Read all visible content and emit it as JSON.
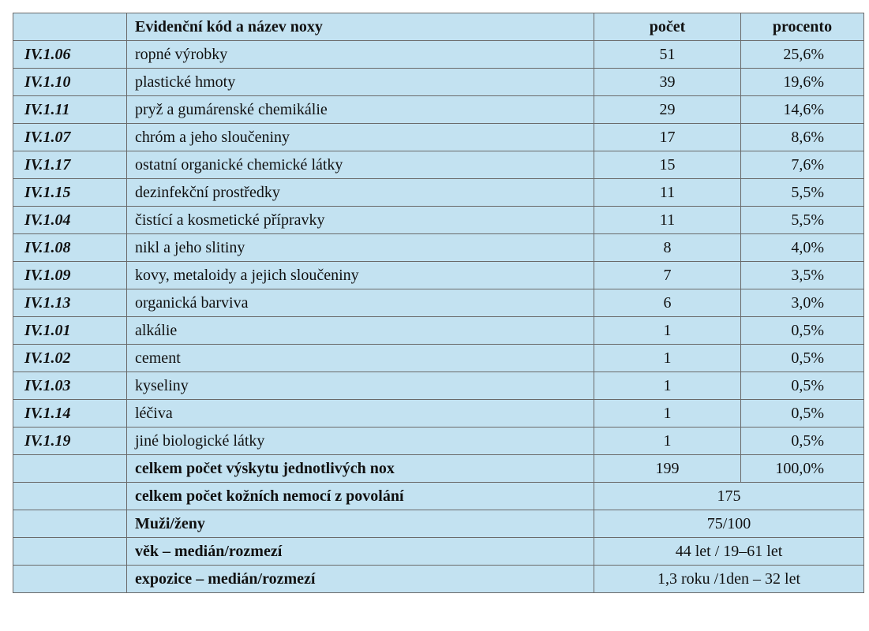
{
  "table": {
    "headers": [
      "",
      "Evidenční kód a název noxy",
      "počet",
      "procento"
    ],
    "rows": [
      {
        "code": "IV.1.06",
        "name": "ropné výrobky",
        "count": "51",
        "percent": "25,6%"
      },
      {
        "code": "IV.1.10",
        "name": "plastické hmoty",
        "count": "39",
        "percent": "19,6%"
      },
      {
        "code": "IV.1.11",
        "name": "pryž a gumárenské chemikálie",
        "count": "29",
        "percent": "14,6%"
      },
      {
        "code": "IV.1.07",
        "name": "chróm a jeho sloučeniny",
        "count": "17",
        "percent": "8,6%"
      },
      {
        "code": "IV.1.17",
        "name": "ostatní organické chemické látky",
        "count": "15",
        "percent": "7,6%"
      },
      {
        "code": "IV.1.15",
        "name": "dezinfekční prostředky",
        "count": "11",
        "percent": "5,5%"
      },
      {
        "code": "IV.1.04",
        "name": "čistící a kosmetické přípravky",
        "count": "11",
        "percent": "5,5%"
      },
      {
        "code": "IV.1.08",
        "name": "nikl a jeho slitiny",
        "count": "8",
        "percent": "4,0%"
      },
      {
        "code": "IV.1.09",
        "name": "kovy, metaloidy a jejich sloučeniny",
        "count": "7",
        "percent": "3,5%"
      },
      {
        "code": "IV.1.13",
        "name": "organická barviva",
        "count": "6",
        "percent": "3,0%"
      },
      {
        "code": "IV.1.01",
        "name": "alkálie",
        "count": "1",
        "percent": "0,5%"
      },
      {
        "code": "IV.1.02",
        "name": "cement",
        "count": "1",
        "percent": "0,5%"
      },
      {
        "code": "IV.1.03",
        "name": "kyseliny",
        "count": "1",
        "percent": "0,5%"
      },
      {
        "code": "IV.1.14",
        "name": "léčiva",
        "count": "1",
        "percent": "0,5%"
      },
      {
        "code": "IV.1.19",
        "name": "jiné biologické látky",
        "count": "1",
        "percent": "0,5%"
      }
    ],
    "summary": {
      "total_nox": {
        "label": "celkem počet výskytu jednotlivých nox",
        "count": "199",
        "percent": "100,0%"
      },
      "total_diseases": {
        "label": "celkem počet kožních nemocí z povolání",
        "value": "175"
      },
      "men_women": {
        "label": "Muži/ženy",
        "value": "75/100"
      },
      "age": {
        "label": "věk – medián/rozmezí",
        "value": "44 let / 19–61 let"
      },
      "exposure": {
        "label": "expozice – medián/rozmezí",
        "value": "1,3 roku /1den – 32 let"
      }
    }
  },
  "colors": {
    "cell_background": "#c3e2f1",
    "border": "#6a6a6a"
  }
}
